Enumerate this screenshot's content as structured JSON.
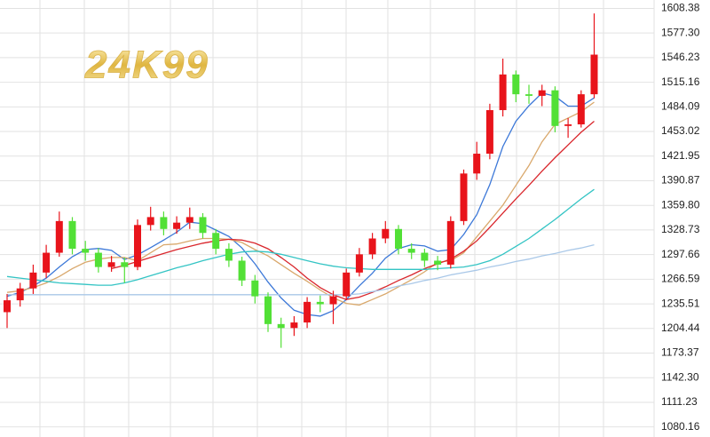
{
  "chart_data": {
    "type": "candlestick",
    "watermark": "24K99",
    "ylim": [
      1067.47,
      1618.96
    ],
    "yticks": [
      1608.38,
      {
        "value": 1577.3,
        "label": "1577.30"
      },
      1546.23,
      1515.16,
      1484.09,
      1453.02,
      1421.95,
      1390.87,
      {
        "value": 1359.8,
        "label": "1359.80"
      },
      1328.73,
      1297.66,
      1266.59,
      1235.51,
      1204.44,
      1173.37,
      {
        "value": 1142.3,
        "label": "1142.30"
      },
      1111.23,
      1080.16
    ],
    "grid": true,
    "up_color": "#e8141b",
    "down_color": "#52e036",
    "open": [
      1225,
      1240,
      1255,
      1275,
      1300,
      1340,
      1305,
      1300,
      1282,
      1288,
      1282,
      1335,
      1345,
      1330,
      1338,
      1345,
      1325,
      1305,
      1290,
      1265,
      1245,
      1210,
      1205,
      1212,
      1238,
      1235,
      1245,
      1275,
      1298,
      1318,
      1330,
      1305,
      1300,
      1290,
      1285,
      1340,
      1400,
      1425,
      1480,
      1525,
      1500,
      1498,
      1505,
      1460,
      1462,
      1500
    ],
    "high": [
      1248,
      1262,
      1285,
      1310,
      1352,
      1345,
      1315,
      1306,
      1296,
      1294,
      1342,
      1358,
      1352,
      1346,
      1357,
      1350,
      1330,
      1312,
      1295,
      1272,
      1250,
      1218,
      1220,
      1244,
      1246,
      1252,
      1280,
      1306,
      1325,
      1340,
      1335,
      1312,
      1305,
      1296,
      1346,
      1405,
      1440,
      1488,
      1545,
      1530,
      1512,
      1512,
      1510,
      1470,
      1505,
      1602
    ],
    "low": [
      1205,
      1232,
      1248,
      1268,
      1295,
      1298,
      1290,
      1275,
      1276,
      1262,
      1278,
      1328,
      1322,
      1324,
      1330,
      1318,
      1298,
      1282,
      1258,
      1236,
      1200,
      1180,
      1195,
      1205,
      1225,
      1210,
      1240,
      1270,
      1292,
      1312,
      1298,
      1292,
      1282,
      1278,
      1280,
      1335,
      1392,
      1418,
      1472,
      1490,
      1488,
      1485,
      1452,
      1445,
      1458,
      1495
    ],
    "close": [
      1240,
      1255,
      1275,
      1300,
      1340,
      1305,
      1300,
      1282,
      1288,
      1282,
      1335,
      1345,
      1330,
      1338,
      1345,
      1325,
      1305,
      1290,
      1265,
      1245,
      1210,
      1205,
      1212,
      1238,
      1235,
      1245,
      1275,
      1298,
      1318,
      1330,
      1305,
      1300,
      1290,
      1285,
      1340,
      1400,
      1425,
      1480,
      1525,
      1500,
      1498,
      1505,
      1460,
      1462,
      1500,
      1550
    ],
    "lines": [
      {
        "color": "#3c78d8",
        "values": [
          1245,
          1250,
          1258,
          1268,
          1282,
          1295,
          1304,
          1305.4,
          1303,
          1291.4,
          1297.4,
          1306.4,
          1316,
          1326,
          1338.6,
          1336.6,
          1328.6,
          1320.6,
          1306,
          1286,
          1263,
          1243,
          1227.4,
          1222,
          1220,
          1227,
          1241,
          1258.2,
          1274.2,
          1293.2,
          1305.2,
          1310.2,
          1308.6,
          1302,
          1304,
          1323,
          1348,
          1386,
          1434,
          1466,
          1485.6,
          1501.6,
          1497.6,
          1485,
          1485,
          1495.4
        ]
      },
      {
        "color": "#d9a86c",
        "values": [
          1250,
          1252,
          1256,
          1262,
          1270,
          1280,
          1288,
          1292,
          1294,
          1294,
          1290,
          1300,
          1310,
          1311,
          1315,
          1318,
          1318,
          1317,
          1313,
          1304,
          1296,
          1285,
          1274,
          1264,
          1253,
          1243,
          1236,
          1234,
          1241,
          1248,
          1257,
          1266,
          1276,
          1288,
          1290,
          1300,
          1320,
          1340,
          1360,
          1385,
          1410,
          1440,
          1462,
          1470,
          1478,
          1490
        ]
      },
      {
        "color": "#d9262c",
        "values": [
          null,
          null,
          null,
          null,
          null,
          null,
          null,
          null,
          1280,
          1284,
          1289,
          1294,
          1299,
          1304,
          1308,
          1312,
          1315,
          1317,
          1316,
          1312,
          1305,
          1294,
          1282,
          1268,
          1256,
          1247,
          1241,
          1244,
          1250,
          1257,
          1265,
          1272,
          1280,
          1286,
          1292,
          1302,
          1315,
          1332,
          1350,
          1368,
          1385,
          1403,
          1420,
          1436,
          1452,
          1466
        ]
      },
      {
        "color": "#33c4c4",
        "values": [
          1270,
          1268,
          1266,
          1264,
          1262,
          1261,
          1260,
          1259,
          1259,
          1262,
          1266,
          1271,
          1276,
          1281,
          1285,
          1290,
          1294,
          1298,
          1301,
          1302,
          1301,
          1298,
          1294,
          1290,
          1286,
          1283,
          1281,
          1280,
          1279,
          1279,
          1279,
          1279,
          1279,
          1280,
          1281,
          1282,
          1285,
          1290,
          1298,
          1308,
          1318,
          1330,
          1342,
          1355,
          1368,
          1380
        ]
      },
      {
        "color": "#a9c8e8",
        "values": [
          1247,
          1247,
          1247,
          1247,
          1247,
          1247,
          1247,
          1247,
          1247,
          1247,
          1247,
          1247,
          1247,
          1247,
          1247,
          1247,
          1247,
          1247,
          1247,
          1247,
          1247,
          1247,
          1247,
          1247,
          1247,
          1247,
          1247,
          1248,
          1251,
          1254,
          1258,
          1261,
          1265,
          1268,
          1272,
          1275,
          1278,
          1282,
          1285,
          1289,
          1292,
          1296,
          1299,
          1303,
          1306,
          1310
        ]
      }
    ]
  }
}
